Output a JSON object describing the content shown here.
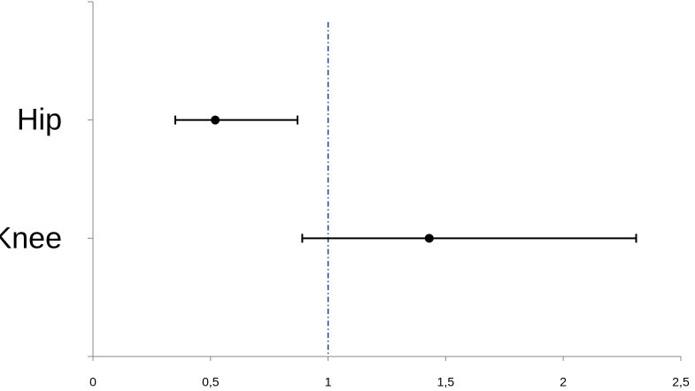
{
  "chart_data": {
    "type": "forest",
    "categories": [
      "Hip",
      "Knee"
    ],
    "values": [
      0.52,
      1.43
    ],
    "lower": [
      0.35,
      0.89
    ],
    "upper": [
      0.87,
      2.31
    ],
    "color": "#000000",
    "reference_line": 1,
    "reference_color": "#1f3f8f",
    "xlim": [
      0,
      2.5
    ],
    "xticks": [
      0,
      {
        "value": 0.5,
        "label": "0,5"
      },
      1,
      {
        "value": 1.5,
        "label": "1,5"
      },
      2,
      {
        "value": 2.5,
        "label": "2,5"
      }
    ]
  }
}
